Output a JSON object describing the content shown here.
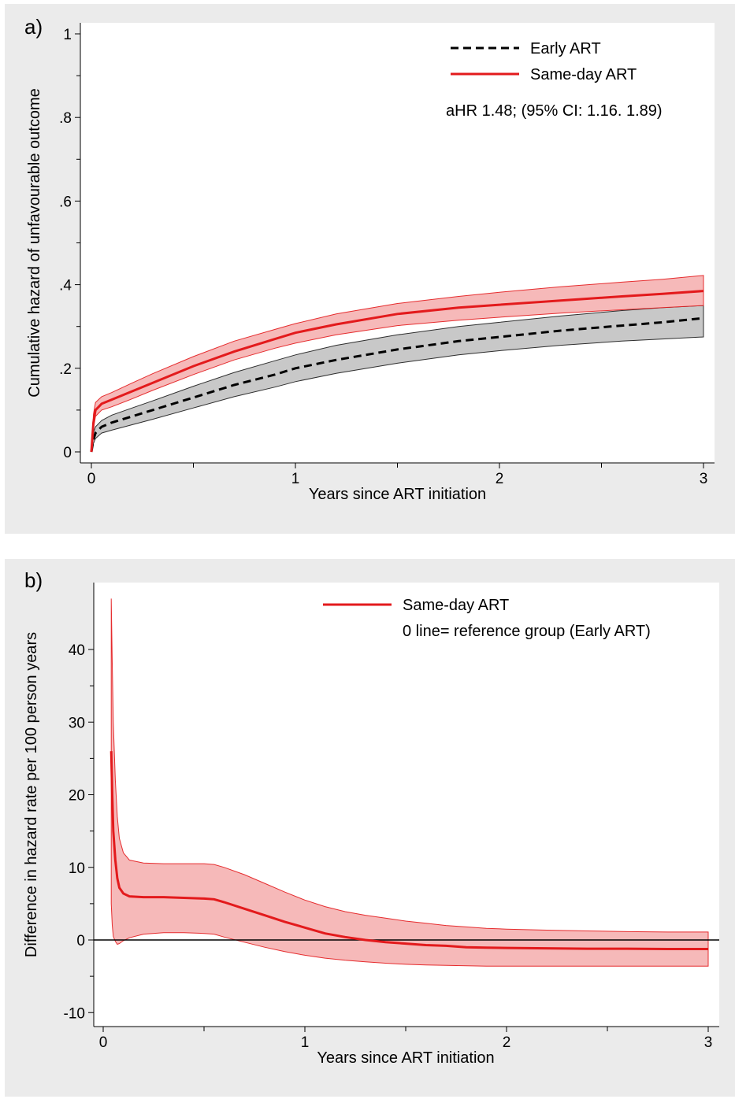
{
  "chart_data": [
    {
      "type": "line",
      "panel_label": "a)",
      "xlabel": "Years since ART initiation",
      "ylabel": "Cumulative hazard of unfavourable outcome",
      "xlim": [
        0,
        3
      ],
      "ylim": [
        0,
        1
      ],
      "x_ticks": [
        0,
        1,
        2,
        3
      ],
      "x_tick_labels": [
        "0",
        "1",
        "2",
        "3"
      ],
      "y_ticks": [
        0,
        0.2,
        0.4,
        0.6,
        0.8,
        1
      ],
      "y_tick_labels": [
        "0",
        ".2",
        ".4",
        ".6",
        ".8",
        "1"
      ],
      "grid": false,
      "legend_position": "top-right",
      "annotation": "aHR 1.48; (95% CI: 1.16. 1.89)",
      "series": [
        {
          "name": "Early ART",
          "color": "#000000",
          "dash": "dashed",
          "band_color": "#c8c8c8",
          "x": [
            0,
            0.01,
            0.02,
            0.05,
            0.1,
            0.2,
            0.3,
            0.5,
            0.7,
            0.9,
            1.0,
            1.2,
            1.5,
            1.8,
            2.0,
            2.3,
            2.6,
            2.8,
            3.0
          ],
          "y": [
            0,
            0.03,
            0.045,
            0.06,
            0.07,
            0.085,
            0.1,
            0.13,
            0.16,
            0.185,
            0.2,
            0.22,
            0.245,
            0.265,
            0.275,
            0.29,
            0.302,
            0.31,
            0.32
          ],
          "lower": [
            0,
            0.02,
            0.032,
            0.045,
            0.052,
            0.065,
            0.078,
            0.105,
            0.132,
            0.155,
            0.168,
            0.188,
            0.212,
            0.232,
            0.242,
            0.255,
            0.265,
            0.27,
            0.275
          ],
          "upper": [
            0,
            0.045,
            0.06,
            0.075,
            0.088,
            0.105,
            0.122,
            0.157,
            0.19,
            0.218,
            0.232,
            0.255,
            0.28,
            0.3,
            0.31,
            0.325,
            0.338,
            0.345,
            0.35
          ]
        },
        {
          "name": "Same-day ART",
          "color": "#e31a1c",
          "dash": "solid",
          "band_color": "#f6b9b9",
          "x": [
            0,
            0.01,
            0.02,
            0.05,
            0.1,
            0.2,
            0.3,
            0.5,
            0.7,
            0.9,
            1.0,
            1.2,
            1.5,
            1.8,
            2.0,
            2.3,
            2.6,
            2.8,
            3.0
          ],
          "y": [
            0,
            0.07,
            0.1,
            0.115,
            0.125,
            0.145,
            0.165,
            0.205,
            0.24,
            0.27,
            0.285,
            0.305,
            0.33,
            0.345,
            0.352,
            0.362,
            0.372,
            0.378,
            0.385
          ],
          "lower": [
            0,
            0.055,
            0.085,
            0.1,
            0.108,
            0.127,
            0.147,
            0.185,
            0.22,
            0.248,
            0.26,
            0.28,
            0.302,
            0.315,
            0.322,
            0.332,
            0.34,
            0.345,
            0.35
          ],
          "upper": [
            0,
            0.09,
            0.118,
            0.132,
            0.142,
            0.165,
            0.187,
            0.228,
            0.265,
            0.293,
            0.307,
            0.33,
            0.355,
            0.372,
            0.382,
            0.395,
            0.406,
            0.413,
            0.422
          ]
        }
      ]
    },
    {
      "type": "line",
      "panel_label": "b)",
      "xlabel": "Years since ART initiation",
      "ylabel": "Difference in hazard rate per 100 person years",
      "xlim": [
        0,
        3
      ],
      "ylim": [
        -10,
        45
      ],
      "x_ticks": [
        0,
        1,
        2,
        3
      ],
      "x_tick_labels": [
        "0",
        "1",
        "2",
        "3"
      ],
      "y_ticks": [
        -10,
        0,
        10,
        20,
        30,
        40
      ],
      "y_tick_labels": [
        "-10",
        "0",
        "10",
        "20",
        "30",
        "40"
      ],
      "grid": false,
      "legend_position": "top-right",
      "annotation": "0 line= reference group (Early ART)",
      "reference_line": 0,
      "series": [
        {
          "name": "Same-day ART",
          "color": "#e31a1c",
          "dash": "solid",
          "band_color": "#f6b9b9",
          "x": [
            0.04,
            0.045,
            0.05,
            0.06,
            0.07,
            0.08,
            0.1,
            0.13,
            0.2,
            0.3,
            0.4,
            0.5,
            0.55,
            0.6,
            0.7,
            0.8,
            0.9,
            1.0,
            1.1,
            1.2,
            1.3,
            1.4,
            1.5,
            1.6,
            1.7,
            1.8,
            1.9,
            2.0,
            2.2,
            2.4,
            2.6,
            2.8,
            3.0
          ],
          "y": [
            26,
            20,
            15,
            11,
            8.5,
            7.2,
            6.4,
            6.0,
            5.9,
            5.9,
            5.8,
            5.7,
            5.6,
            5.2,
            4.3,
            3.4,
            2.5,
            1.7,
            0.9,
            0.4,
            0.0,
            -0.3,
            -0.5,
            -0.7,
            -0.8,
            -1.0,
            -1.05,
            -1.1,
            -1.15,
            -1.2,
            -1.2,
            -1.25,
            -1.25
          ],
          "lower": [
            5,
            2,
            0.5,
            -0.2,
            -0.6,
            -0.5,
            -0.1,
            0.3,
            0.8,
            1.0,
            1.0,
            0.9,
            0.8,
            0.4,
            -0.3,
            -1.0,
            -1.6,
            -2.1,
            -2.5,
            -2.8,
            -3.0,
            -3.2,
            -3.35,
            -3.45,
            -3.5,
            -3.55,
            -3.6,
            -3.6,
            -3.6,
            -3.6,
            -3.6,
            -3.6,
            -3.6
          ],
          "upper": [
            47,
            38,
            30,
            22,
            17,
            14,
            12,
            11,
            10.6,
            10.5,
            10.5,
            10.5,
            10.4,
            10.0,
            9.0,
            7.8,
            6.6,
            5.5,
            4.6,
            3.9,
            3.4,
            3.0,
            2.6,
            2.3,
            2.0,
            1.8,
            1.6,
            1.5,
            1.35,
            1.25,
            1.15,
            1.1,
            1.1
          ]
        }
      ]
    }
  ]
}
